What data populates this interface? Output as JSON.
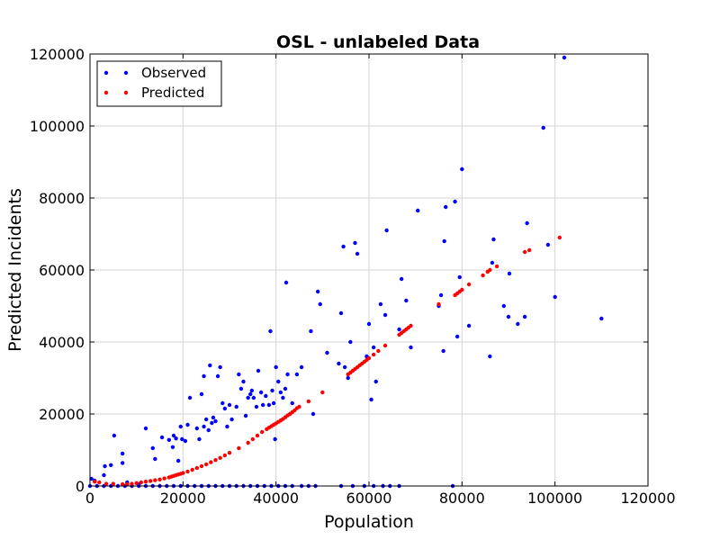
{
  "chart_data": {
    "type": "scatter",
    "title": "OSL - unlabeled Data",
    "xlabel": "Population",
    "ylabel": "Predicted Incidents",
    "xlim": [
      0,
      120000
    ],
    "ylim": [
      0,
      120000
    ],
    "xticks": [
      0,
      20000,
      40000,
      60000,
      80000,
      100000,
      120000
    ],
    "yticks": [
      0,
      20000,
      40000,
      60000,
      80000,
      100000,
      120000
    ],
    "grid": true,
    "legend": "top-left",
    "series": [
      {
        "name": "Observed",
        "color": "#0000ff",
        "points": [
          [
            300,
            2000
          ],
          [
            1000,
            1500
          ],
          [
            3000,
            3000
          ],
          [
            3200,
            5500
          ],
          [
            4500,
            5800
          ],
          [
            5200,
            14000
          ],
          [
            7000,
            9000
          ],
          [
            7000,
            6400
          ],
          [
            8000,
            1000
          ],
          [
            10500,
            500
          ],
          [
            12000,
            16000
          ],
          [
            13500,
            10500
          ],
          [
            14000,
            7500
          ],
          [
            15500,
            13500
          ],
          [
            17000,
            12800
          ],
          [
            17800,
            10800
          ],
          [
            18000,
            14000
          ],
          [
            18500,
            13200
          ],
          [
            19000,
            7000
          ],
          [
            19500,
            16500
          ],
          [
            19800,
            13000
          ],
          [
            20500,
            12500
          ],
          [
            21000,
            17000
          ],
          [
            21500,
            24500
          ],
          [
            23000,
            16000
          ],
          [
            23500,
            13000
          ],
          [
            24000,
            25500
          ],
          [
            24500,
            16500
          ],
          [
            24500,
            30500
          ],
          [
            25000,
            18500
          ],
          [
            25500,
            15500
          ],
          [
            25800,
            33500
          ],
          [
            26200,
            17500
          ],
          [
            26500,
            19000
          ],
          [
            27000,
            18000
          ],
          [
            27500,
            30500
          ],
          [
            28000,
            33000
          ],
          [
            28500,
            23000
          ],
          [
            29000,
            21500
          ],
          [
            29500,
            16500
          ],
          [
            30000,
            22500
          ],
          [
            30500,
            18500
          ],
          [
            31500,
            22000
          ],
          [
            32000,
            31000
          ],
          [
            32500,
            27000
          ],
          [
            33000,
            29000
          ],
          [
            33500,
            19500
          ],
          [
            34000,
            24500
          ],
          [
            34500,
            25500
          ],
          [
            34800,
            26500
          ],
          [
            35200,
            24500
          ],
          [
            35800,
            22000
          ],
          [
            36200,
            32000
          ],
          [
            36800,
            26000
          ],
          [
            37200,
            22500
          ],
          [
            37800,
            25000
          ],
          [
            38500,
            22500
          ],
          [
            38800,
            43000
          ],
          [
            39200,
            26500
          ],
          [
            39500,
            23000
          ],
          [
            39800,
            13000
          ],
          [
            40000,
            33000
          ],
          [
            40500,
            29000
          ],
          [
            41000,
            26000
          ],
          [
            41500,
            24500
          ],
          [
            42000,
            27000
          ],
          [
            42200,
            56500
          ],
          [
            42500,
            31000
          ],
          [
            43000,
            20000
          ],
          [
            43500,
            23000
          ],
          [
            44500,
            31000
          ],
          [
            45500,
            33000
          ],
          [
            47500,
            43000
          ],
          [
            48000,
            20000
          ],
          [
            49000,
            54000
          ],
          [
            49500,
            50500
          ],
          [
            51000,
            37000
          ],
          [
            53500,
            34000
          ],
          [
            54000,
            48000
          ],
          [
            54500,
            66500
          ],
          [
            54800,
            33000
          ],
          [
            55500,
            30000
          ],
          [
            56000,
            40000
          ],
          [
            57000,
            67500
          ],
          [
            57500,
            64500
          ],
          [
            59500,
            36000
          ],
          [
            60000,
            45000
          ],
          [
            60500,
            24000
          ],
          [
            61000,
            38500
          ],
          [
            61500,
            29000
          ],
          [
            62500,
            50500
          ],
          [
            63500,
            47500
          ],
          [
            63800,
            71000
          ],
          [
            66500,
            43500
          ],
          [
            67000,
            57500
          ],
          [
            68000,
            51500
          ],
          [
            69000,
            38500
          ],
          [
            70500,
            76500
          ],
          [
            75000,
            50000
          ],
          [
            75500,
            53000
          ],
          [
            76000,
            37500
          ],
          [
            76200,
            68000
          ],
          [
            76500,
            77500
          ],
          [
            78500,
            79000
          ],
          [
            79000,
            41500
          ],
          [
            79500,
            58000
          ],
          [
            80000,
            88000
          ],
          [
            81500,
            44500
          ],
          [
            86000,
            36000
          ],
          [
            86500,
            62000
          ],
          [
            86800,
            68500
          ],
          [
            89000,
            50000
          ],
          [
            90000,
            47000
          ],
          [
            90200,
            59000
          ],
          [
            92000,
            45000
          ],
          [
            93500,
            47000
          ],
          [
            94000,
            73000
          ],
          [
            97500,
            99500
          ],
          [
            98500,
            67000
          ],
          [
            100000,
            52500
          ],
          [
            102000,
            119000
          ],
          [
            110000,
            46500
          ],
          [
            0,
            0
          ],
          [
            1500,
            0
          ],
          [
            3000,
            0
          ],
          [
            4500,
            0
          ],
          [
            6000,
            0
          ],
          [
            7500,
            0
          ],
          [
            9000,
            0
          ],
          [
            10500,
            0
          ],
          [
            12000,
            0
          ],
          [
            13500,
            0
          ],
          [
            15000,
            0
          ],
          [
            16500,
            0
          ],
          [
            18000,
            0
          ],
          [
            19500,
            0
          ],
          [
            21000,
            0
          ],
          [
            22500,
            0
          ],
          [
            24000,
            0
          ],
          [
            25500,
            0
          ],
          [
            27000,
            0
          ],
          [
            28500,
            0
          ],
          [
            30000,
            0
          ],
          [
            31500,
            0
          ],
          [
            33000,
            0
          ],
          [
            34500,
            0
          ],
          [
            36000,
            0
          ],
          [
            37500,
            0
          ],
          [
            39000,
            0
          ],
          [
            40500,
            0
          ],
          [
            42000,
            0
          ],
          [
            43500,
            0
          ],
          [
            45500,
            0
          ],
          [
            47000,
            0
          ],
          [
            48500,
            0
          ],
          [
            54000,
            0
          ],
          [
            56500,
            0
          ],
          [
            59000,
            0
          ],
          [
            61000,
            0
          ],
          [
            63000,
            0
          ],
          [
            64500,
            0
          ],
          [
            66500,
            0
          ],
          [
            78000,
            0
          ]
        ]
      },
      {
        "name": "Predicted",
        "color": "#ff0000",
        "points": [
          [
            1000,
            1200
          ],
          [
            2000,
            1000
          ],
          [
            3500,
            600
          ],
          [
            5000,
            600
          ],
          [
            7000,
            500
          ],
          [
            8000,
            500
          ],
          [
            9000,
            600
          ],
          [
            10000,
            800
          ],
          [
            11000,
            1000
          ],
          [
            12000,
            1200
          ],
          [
            13000,
            1400
          ],
          [
            14000,
            1600
          ],
          [
            15000,
            1800
          ],
          [
            16000,
            2100
          ],
          [
            17000,
            2400
          ],
          [
            17500,
            2600
          ],
          [
            18000,
            2800
          ],
          [
            18500,
            3000
          ],
          [
            19000,
            3200
          ],
          [
            19500,
            3400
          ],
          [
            20000,
            3600
          ],
          [
            21000,
            4000
          ],
          [
            22000,
            4500
          ],
          [
            23000,
            5000
          ],
          [
            24000,
            5500
          ],
          [
            25000,
            6000
          ],
          [
            26000,
            6600
          ],
          [
            27000,
            7200
          ],
          [
            28000,
            7800
          ],
          [
            29000,
            8500
          ],
          [
            30000,
            9200
          ],
          [
            32000,
            10500
          ],
          [
            34000,
            12000
          ],
          [
            35000,
            13000
          ],
          [
            36000,
            14000
          ],
          [
            37000,
            15000
          ],
          [
            38000,
            15800
          ],
          [
            38500,
            16200
          ],
          [
            39000,
            16600
          ],
          [
            39500,
            17000
          ],
          [
            40000,
            17400
          ],
          [
            40500,
            17800
          ],
          [
            41000,
            18200
          ],
          [
            41500,
            18600
          ],
          [
            42000,
            19100
          ],
          [
            42500,
            19600
          ],
          [
            43000,
            20000
          ],
          [
            43500,
            20500
          ],
          [
            44000,
            21000
          ],
          [
            44500,
            21600
          ],
          [
            45000,
            22000
          ],
          [
            47000,
            23500
          ],
          [
            50000,
            26000
          ],
          [
            55500,
            31000
          ],
          [
            56000,
            31500
          ],
          [
            56500,
            32000
          ],
          [
            57000,
            32500
          ],
          [
            57500,
            33000
          ],
          [
            58000,
            33500
          ],
          [
            58500,
            34000
          ],
          [
            59000,
            34500
          ],
          [
            59500,
            35000
          ],
          [
            60000,
            35500
          ],
          [
            61000,
            36500
          ],
          [
            62000,
            37500
          ],
          [
            63500,
            39000
          ],
          [
            66500,
            42000
          ],
          [
            67000,
            42500
          ],
          [
            67500,
            43000
          ],
          [
            68000,
            43500
          ],
          [
            68500,
            44000
          ],
          [
            69000,
            44500
          ],
          [
            75000,
            50500
          ],
          [
            78500,
            53000
          ],
          [
            79000,
            53500
          ],
          [
            79500,
            54000
          ],
          [
            80000,
            54500
          ],
          [
            81500,
            56000
          ],
          [
            84500,
            58500
          ],
          [
            85500,
            59500
          ],
          [
            86000,
            60000
          ],
          [
            87500,
            61000
          ],
          [
            93500,
            65000
          ],
          [
            94500,
            65500
          ],
          [
            101000,
            69000
          ]
        ]
      }
    ]
  }
}
